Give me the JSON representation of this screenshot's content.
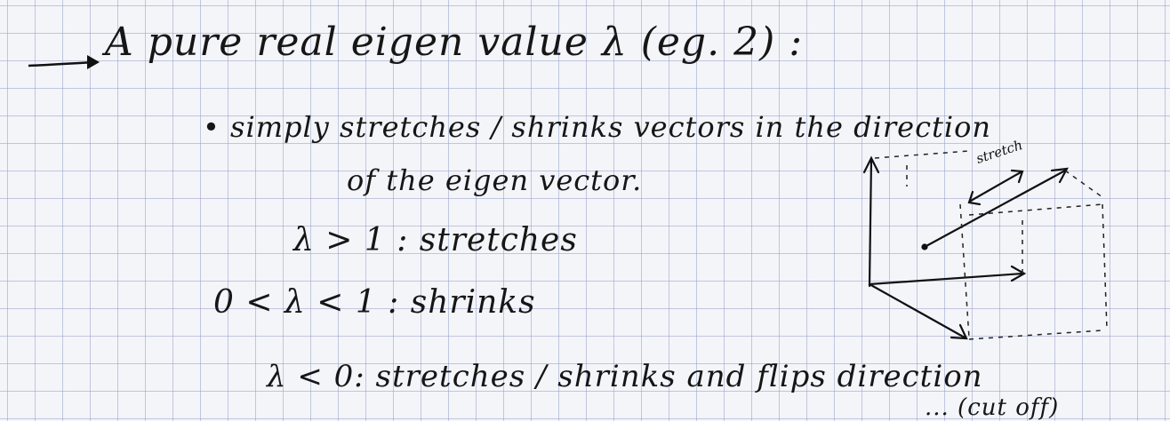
{
  "notes": {
    "heading": "A pure real eigen value λ (eg. 2) :",
    "bullet": "• simply stretches / shrinks vectors in the direction",
    "bullet_cont": "of the eigen vector.",
    "case_gt1": "λ > 1 :  stretches",
    "case_0to1": "0 < λ < 1 :  shrinks",
    "case_lt0": "λ < 0:  stretches / shrinks and flips direction",
    "trailing": "... (cut off)"
  },
  "sketch": {
    "label": "stretch"
  }
}
